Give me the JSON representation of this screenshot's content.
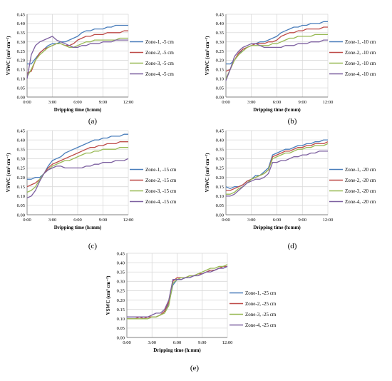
{
  "figure": {
    "panel_labels": [
      "(a)",
      "(b)",
      "(c)",
      "(d)",
      "(e)"
    ]
  },
  "colors": {
    "zone1": "#4a7ebb",
    "zone2": "#be4b48",
    "zone3": "#98b954",
    "zone4": "#7d60a0",
    "grid": "#d9d9d9",
    "axis": "#808080"
  },
  "chart_data": [
    {
      "type": "line",
      "panel": "(a)",
      "xlabel": "Dripping time (h:mm)",
      "ylabel": "VSWC (cm³ cm⁻³)",
      "xlim": [
        0,
        12
      ],
      "ylim": [
        0,
        0.45
      ],
      "x_ticks": [
        "0:00",
        "3:00",
        "6:00",
        "9:00",
        "12:00"
      ],
      "y_ticks": [
        "0.00",
        "0.05",
        "0.10",
        "0.15",
        "0.20",
        "0.25",
        "0.30",
        "0.35",
        "0.40",
        "0.45"
      ],
      "grid": true,
      "legend": "right",
      "x_hours": [
        0,
        0.5,
        1,
        1.5,
        2,
        2.5,
        3,
        3.5,
        4,
        4.5,
        5,
        5.5,
        6,
        6.5,
        7,
        7.5,
        8,
        8.5,
        9,
        9.5,
        10,
        10.5,
        11,
        11.5,
        12
      ],
      "series": [
        {
          "name": "Zone-1, -5 cm",
          "values": [
            0.18,
            0.18,
            0.21,
            0.24,
            0.26,
            0.28,
            0.29,
            0.29,
            0.3,
            0.3,
            0.31,
            0.32,
            0.33,
            0.35,
            0.36,
            0.36,
            0.37,
            0.37,
            0.37,
            0.38,
            0.38,
            0.39,
            0.39,
            0.39,
            0.39
          ]
        },
        {
          "name": "Zone-2, -5 cm",
          "values": [
            0.13,
            0.14,
            0.2,
            0.24,
            0.26,
            0.27,
            0.28,
            0.29,
            0.29,
            0.28,
            0.28,
            0.29,
            0.31,
            0.32,
            0.33,
            0.33,
            0.34,
            0.34,
            0.34,
            0.35,
            0.35,
            0.35,
            0.35,
            0.36,
            0.36
          ]
        },
        {
          "name": "Zone-3, -5 cm",
          "values": [
            0.11,
            0.15,
            0.2,
            0.23,
            0.25,
            0.27,
            0.28,
            0.29,
            0.29,
            0.28,
            0.27,
            0.27,
            0.28,
            0.29,
            0.3,
            0.3,
            0.31,
            0.31,
            0.31,
            0.31,
            0.31,
            0.31,
            0.32,
            0.32,
            0.32
          ]
        },
        {
          "name": "Zone-4, -5 cm",
          "values": [
            0.1,
            0.23,
            0.28,
            0.3,
            0.31,
            0.32,
            0.33,
            0.31,
            0.3,
            0.29,
            0.28,
            0.27,
            0.27,
            0.28,
            0.28,
            0.29,
            0.29,
            0.29,
            0.3,
            0.3,
            0.3,
            0.31,
            0.31,
            0.31,
            0.31
          ]
        }
      ]
    },
    {
      "type": "line",
      "panel": "(b)",
      "xlabel": "Dripping time (h:mm)",
      "ylabel": "VSWC (cm³ cm⁻³)",
      "xlim": [
        0,
        12
      ],
      "ylim": [
        0,
        0.45
      ],
      "x_ticks": [
        "0:00",
        "3:00",
        "6:00",
        "9:00",
        "12:00"
      ],
      "y_ticks": [
        "0.00",
        "0.05",
        "0.10",
        "0.15",
        "0.20",
        "0.25",
        "0.30",
        "0.35",
        "0.40",
        "0.45"
      ],
      "grid": true,
      "legend": "right",
      "x_hours": [
        0,
        0.5,
        1,
        1.5,
        2,
        2.5,
        3,
        3.5,
        4,
        4.5,
        5,
        5.5,
        6,
        6.5,
        7,
        7.5,
        8,
        8.5,
        9,
        9.5,
        10,
        10.5,
        11,
        11.5,
        12
      ],
      "series": [
        {
          "name": "Zone-1, -10 cm",
          "values": [
            0.18,
            0.18,
            0.2,
            0.23,
            0.26,
            0.27,
            0.28,
            0.29,
            0.3,
            0.3,
            0.31,
            0.32,
            0.33,
            0.35,
            0.36,
            0.37,
            0.38,
            0.38,
            0.39,
            0.39,
            0.4,
            0.4,
            0.4,
            0.41,
            0.41
          ]
        },
        {
          "name": "Zone-2, -10 cm",
          "values": [
            0.14,
            0.15,
            0.2,
            0.24,
            0.26,
            0.27,
            0.28,
            0.29,
            0.29,
            0.29,
            0.3,
            0.3,
            0.31,
            0.33,
            0.34,
            0.35,
            0.35,
            0.36,
            0.36,
            0.37,
            0.37,
            0.37,
            0.37,
            0.38,
            0.38
          ]
        },
        {
          "name": "Zone-3, -10 cm",
          "values": [
            0.1,
            0.15,
            0.2,
            0.23,
            0.25,
            0.27,
            0.28,
            0.28,
            0.28,
            0.28,
            0.28,
            0.29,
            0.29,
            0.3,
            0.31,
            0.32,
            0.32,
            0.33,
            0.33,
            0.33,
            0.33,
            0.34,
            0.34,
            0.34,
            0.34
          ]
        },
        {
          "name": "Zone-4, -10 cm",
          "values": [
            0.09,
            0.15,
            0.22,
            0.25,
            0.27,
            0.28,
            0.29,
            0.29,
            0.28,
            0.27,
            0.27,
            0.27,
            0.27,
            0.27,
            0.28,
            0.28,
            0.28,
            0.29,
            0.29,
            0.29,
            0.3,
            0.3,
            0.3,
            0.31,
            0.31
          ]
        }
      ]
    },
    {
      "type": "line",
      "panel": "(c)",
      "xlabel": "Dripping time (h:mm)",
      "ylabel": "VSWC (cm³ cm⁻³)",
      "xlim": [
        0,
        12
      ],
      "ylim": [
        0,
        0.45
      ],
      "x_ticks": [
        "0:00",
        "3:00",
        "6:00",
        "9:00",
        "12:00"
      ],
      "y_ticks": [
        "0.00",
        "0.05",
        "0.10",
        "0.15",
        "0.20",
        "0.25",
        "0.30",
        "0.35",
        "0.40",
        "0.45"
      ],
      "grid": true,
      "legend": "right",
      "x_hours": [
        0,
        0.5,
        1,
        1.5,
        2,
        2.5,
        3,
        3.5,
        4,
        4.5,
        5,
        5.5,
        6,
        6.5,
        7,
        7.5,
        8,
        8.5,
        9,
        9.5,
        10,
        10.5,
        11,
        11.5,
        12
      ],
      "series": [
        {
          "name": "Zone-1, -15 cm",
          "values": [
            0.19,
            0.19,
            0.2,
            0.2,
            0.22,
            0.26,
            0.29,
            0.3,
            0.31,
            0.33,
            0.34,
            0.35,
            0.36,
            0.37,
            0.38,
            0.39,
            0.4,
            0.4,
            0.41,
            0.41,
            0.42,
            0.42,
            0.42,
            0.43,
            0.43
          ]
        },
        {
          "name": "Zone-2, -15 cm",
          "values": [
            0.15,
            0.16,
            0.17,
            0.19,
            0.22,
            0.25,
            0.27,
            0.28,
            0.29,
            0.3,
            0.31,
            0.32,
            0.33,
            0.34,
            0.35,
            0.36,
            0.36,
            0.37,
            0.37,
            0.38,
            0.38,
            0.38,
            0.39,
            0.39,
            0.39
          ]
        },
        {
          "name": "Zone-3, -15 cm",
          "values": [
            0.12,
            0.13,
            0.15,
            0.19,
            0.22,
            0.24,
            0.26,
            0.27,
            0.28,
            0.29,
            0.29,
            0.3,
            0.31,
            0.32,
            0.33,
            0.33,
            0.34,
            0.34,
            0.35,
            0.35,
            0.35,
            0.35,
            0.36,
            0.36,
            0.36
          ]
        },
        {
          "name": "Zone-4, -15 cm",
          "values": [
            0.09,
            0.1,
            0.13,
            0.18,
            0.22,
            0.24,
            0.25,
            0.26,
            0.26,
            0.25,
            0.25,
            0.25,
            0.25,
            0.25,
            0.26,
            0.26,
            0.27,
            0.27,
            0.28,
            0.28,
            0.28,
            0.29,
            0.29,
            0.29,
            0.3
          ]
        }
      ]
    },
    {
      "type": "line",
      "panel": "(d)",
      "xlabel": "Dripping time (h:mm)",
      "ylabel": "VSWC (cm³ cm⁻³)",
      "xlim": [
        0,
        12
      ],
      "ylim": [
        0,
        0.45
      ],
      "x_ticks": [
        "0:00",
        "3:00",
        "6:00",
        "9:00",
        "12:00"
      ],
      "y_ticks": [
        "0.00",
        "0.05",
        "0.10",
        "0.15",
        "0.20",
        "0.25",
        "0.30",
        "0.35",
        "0.40",
        "0.45"
      ],
      "grid": true,
      "legend": "right",
      "x_hours": [
        0,
        0.5,
        1,
        1.5,
        2,
        2.5,
        3,
        3.5,
        4,
        4.5,
        5,
        5.5,
        6,
        6.5,
        7,
        7.5,
        8,
        8.5,
        9,
        9.5,
        10,
        10.5,
        11,
        11.5,
        12
      ],
      "series": [
        {
          "name": "Zone-1, -20 cm",
          "values": [
            0.15,
            0.14,
            0.15,
            0.15,
            0.16,
            0.18,
            0.19,
            0.21,
            0.21,
            0.23,
            0.25,
            0.32,
            0.33,
            0.34,
            0.35,
            0.35,
            0.36,
            0.37,
            0.37,
            0.38,
            0.38,
            0.39,
            0.39,
            0.4,
            0.4
          ]
        },
        {
          "name": "Zone-2, -20 cm",
          "values": [
            0.13,
            0.13,
            0.14,
            0.15,
            0.16,
            0.18,
            0.19,
            0.2,
            0.21,
            0.22,
            0.24,
            0.31,
            0.32,
            0.33,
            0.34,
            0.34,
            0.35,
            0.36,
            0.36,
            0.37,
            0.37,
            0.38,
            0.38,
            0.38,
            0.39
          ]
        },
        {
          "name": "Zone-3, -20 cm",
          "values": [
            0.11,
            0.11,
            0.12,
            0.14,
            0.15,
            0.17,
            0.19,
            0.2,
            0.21,
            0.22,
            0.24,
            0.3,
            0.31,
            0.32,
            0.33,
            0.33,
            0.34,
            0.35,
            0.35,
            0.36,
            0.36,
            0.37,
            0.37,
            0.37,
            0.38
          ]
        },
        {
          "name": "Zone-4, -20 cm",
          "values": [
            0.1,
            0.1,
            0.11,
            0.13,
            0.15,
            0.17,
            0.18,
            0.19,
            0.19,
            0.2,
            0.22,
            0.28,
            0.28,
            0.29,
            0.29,
            0.3,
            0.31,
            0.31,
            0.32,
            0.32,
            0.33,
            0.33,
            0.34,
            0.34,
            0.34
          ]
        }
      ]
    },
    {
      "type": "line",
      "panel": "(e)",
      "xlabel": "Dripping time (h:mm)",
      "ylabel": "VSWC (cm³ cm⁻³)",
      "xlim": [
        0,
        12
      ],
      "ylim": [
        0,
        0.45
      ],
      "x_ticks": [
        "0:00",
        "3:00",
        "6:00",
        "9:00",
        "12:00"
      ],
      "y_ticks": [
        "0.00",
        "0.05",
        "0.10",
        "0.15",
        "0.20",
        "0.25",
        "0.30",
        "0.35",
        "0.40",
        "0.45"
      ],
      "grid": true,
      "legend": "right",
      "x_hours": [
        0,
        0.5,
        1,
        1.5,
        2,
        2.5,
        3,
        3.5,
        4,
        4.5,
        5,
        5.5,
        6,
        6.5,
        7,
        7.5,
        8,
        8.5,
        9,
        9.5,
        10,
        10.5,
        11,
        11.5,
        12
      ],
      "series": [
        {
          "name": "Zone-1, -25 cm",
          "values": [
            0.11,
            0.11,
            0.11,
            0.11,
            0.11,
            0.11,
            0.11,
            0.11,
            0.12,
            0.14,
            0.18,
            0.28,
            0.31,
            0.31,
            0.32,
            0.32,
            0.33,
            0.34,
            0.34,
            0.35,
            0.36,
            0.36,
            0.37,
            0.37,
            0.38
          ]
        },
        {
          "name": "Zone-2, -25 cm",
          "values": [
            0.1,
            0.1,
            0.1,
            0.11,
            0.1,
            0.11,
            0.11,
            0.11,
            0.12,
            0.14,
            0.19,
            0.3,
            0.32,
            0.32,
            0.32,
            0.33,
            0.33,
            0.34,
            0.34,
            0.35,
            0.36,
            0.36,
            0.37,
            0.38,
            0.38
          ]
        },
        {
          "name": "Zone-3, -25 cm",
          "values": [
            0.1,
            0.1,
            0.1,
            0.1,
            0.1,
            0.1,
            0.11,
            0.11,
            0.12,
            0.13,
            0.17,
            0.29,
            0.31,
            0.32,
            0.32,
            0.33,
            0.33,
            0.34,
            0.35,
            0.36,
            0.37,
            0.37,
            0.38,
            0.38,
            0.39
          ]
        },
        {
          "name": "Zone-4, -25 cm",
          "values": [
            0.11,
            0.11,
            0.11,
            0.11,
            0.11,
            0.11,
            0.12,
            0.13,
            0.13,
            0.15,
            0.2,
            0.31,
            0.31,
            0.31,
            0.32,
            0.32,
            0.33,
            0.33,
            0.34,
            0.35,
            0.35,
            0.36,
            0.37,
            0.37,
            0.38
          ]
        }
      ]
    }
  ]
}
